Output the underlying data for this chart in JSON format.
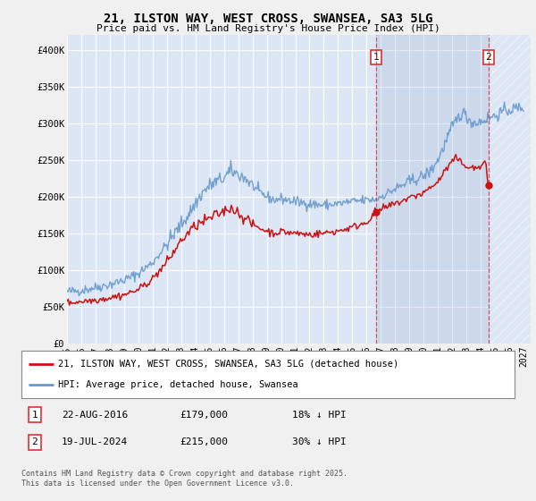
{
  "title": "21, ILSTON WAY, WEST CROSS, SWANSEA, SA3 5LG",
  "subtitle": "Price paid vs. HM Land Registry's House Price Index (HPI)",
  "ylabel_ticks": [
    "£0",
    "£50K",
    "£100K",
    "£150K",
    "£200K",
    "£250K",
    "£300K",
    "£350K",
    "£400K"
  ],
  "ytick_values": [
    0,
    50000,
    100000,
    150000,
    200000,
    250000,
    300000,
    350000,
    400000
  ],
  "ylim": [
    0,
    420000
  ],
  "xlim_start": 1995.0,
  "xlim_end": 2027.5,
  "fig_bg_color": "#f0f0f0",
  "plot_bg_color": "#dce6f5",
  "grid_color": "#ffffff",
  "hpi_color": "#6699cc",
  "price_color": "#cc1111",
  "dashed_line_color": "#dd3333",
  "transaction1_x": 2016.645,
  "transaction1_price": 179000,
  "transaction2_x": 2024.545,
  "transaction2_price": 215000,
  "legend_property": "21, ILSTON WAY, WEST CROSS, SWANSEA, SA3 5LG (detached house)",
  "legend_hpi": "HPI: Average price, detached house, Swansea",
  "footnote": "Contains HM Land Registry data © Crown copyright and database right 2025.\nThis data is licensed under the Open Government Licence v3.0.",
  "table_row1": [
    "1",
    "22-AUG-2016",
    "£179,000",
    "18% ↓ HPI"
  ],
  "table_row2": [
    "2",
    "19-JUL-2024",
    "£215,000",
    "30% ↓ HPI"
  ]
}
